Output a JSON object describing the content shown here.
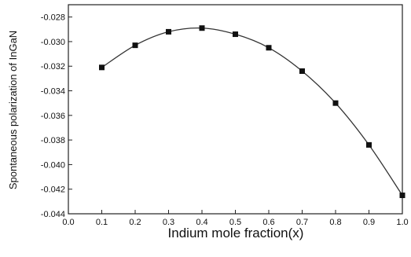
{
  "chart_data": {
    "type": "line",
    "title": "",
    "xlabel": "Indium mole fraction(x)",
    "ylabel": "Spontaneous polarization of InGaN",
    "xlim": [
      0.0,
      1.0
    ],
    "ylim": [
      -0.044,
      -0.027
    ],
    "x_ticks": [
      "0.0",
      "0.1",
      "0.2",
      "0.3",
      "0.4",
      "0.5",
      "0.6",
      "0.7",
      "0.8",
      "0.9",
      "1.0"
    ],
    "y_ticks": [
      "-0.028",
      "-0.030",
      "-0.032",
      "-0.034",
      "-0.036",
      "-0.038",
      "-0.040",
      "-0.042",
      "-0.044"
    ],
    "grid": false,
    "legend": "none",
    "series": [
      {
        "marker": "square",
        "color": "#111111",
        "x": [
          0.1,
          0.2,
          0.3,
          0.4,
          0.5,
          0.6,
          0.7,
          0.8,
          0.9,
          1.0
        ],
        "y": [
          -0.0321,
          -0.0303,
          -0.0292,
          -0.0289,
          -0.0294,
          -0.0305,
          -0.0324,
          -0.035,
          -0.0384,
          -0.0425
        ]
      }
    ],
    "colors": {
      "line": "#333333",
      "marker": "#111111",
      "accent": "#40d0d0"
    }
  }
}
